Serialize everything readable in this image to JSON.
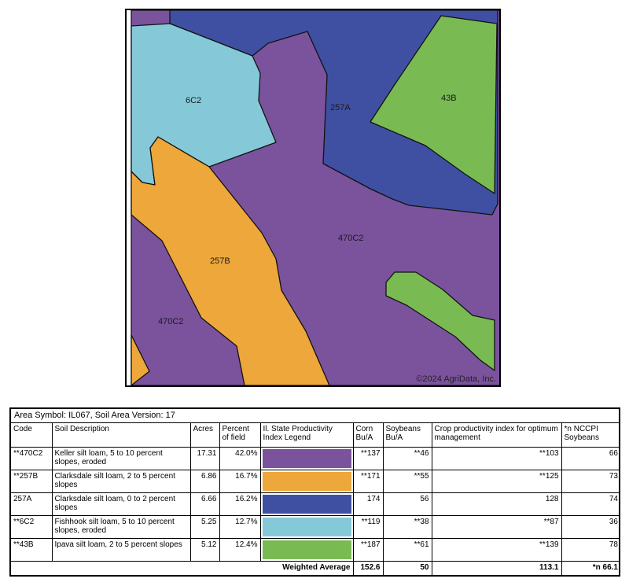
{
  "map": {
    "copyright": "©2024 AgriData, Inc.",
    "labels": [
      {
        "id": "6C2",
        "text": "6C2"
      },
      {
        "id": "257A",
        "text": "257A"
      },
      {
        "id": "43B",
        "text": "43B"
      },
      {
        "id": "470C2-main",
        "text": "470C2"
      },
      {
        "id": "257B",
        "text": "257B"
      },
      {
        "id": "470C2-lower",
        "text": "470C2"
      }
    ],
    "colors": {
      "470C2": "#7b539d",
      "257B": "#eda73b",
      "257A": "#3f50a2",
      "6C2": "#85c9d9",
      "43B": "#79bb52"
    }
  },
  "table": {
    "area_header": "Area Symbol: IL067, Soil Area Version: 17",
    "headers": {
      "code": "Code",
      "description": "Soil Description",
      "acres": "Acres",
      "percent": "Percent of field",
      "legend": "Il. State Productivity Index Legend",
      "corn": "Corn Bu/A",
      "soybeans": "Soybeans Bu/A",
      "cpi": "Crop productivity index for optimum management",
      "nccpi": "*n NCCPI Soybeans"
    },
    "rows": [
      {
        "code": "**470C2",
        "description": "Keller silt loam, 5 to 10 percent slopes, eroded",
        "acres": "17.31",
        "percent": "42.0%",
        "color": "#7b539d",
        "corn": "**137",
        "soybeans": "**46",
        "cpi": "**103",
        "nccpi": "66"
      },
      {
        "code": "**257B",
        "description": "Clarksdale silt loam, 2 to 5 percent slopes",
        "acres": "6.86",
        "percent": "16.7%",
        "color": "#eda73b",
        "corn": "**171",
        "soybeans": "**55",
        "cpi": "**125",
        "nccpi": "73"
      },
      {
        "code": "257A",
        "description": "Clarksdale silt loam, 0 to 2 percent slopes",
        "acres": "6.66",
        "percent": "16.2%",
        "color": "#3f50a2",
        "corn": "174",
        "soybeans": "56",
        "cpi": "128",
        "nccpi": "74"
      },
      {
        "code": "**6C2",
        "description": "Fishhook silt loam, 5 to 10 percent slopes, eroded",
        "acres": "5.25",
        "percent": "12.7%",
        "color": "#85c9d9",
        "corn": "**119",
        "soybeans": "**38",
        "cpi": "**87",
        "nccpi": "36"
      },
      {
        "code": "**43B",
        "description": "Ipava silt loam, 2 to 5 percent slopes",
        "acres": "5.12",
        "percent": "12.4%",
        "color": "#79bb52",
        "corn": "**187",
        "soybeans": "**61",
        "cpi": "**139",
        "nccpi": "78"
      }
    ],
    "weighted": {
      "label": "Weighted Average",
      "corn": "152.6",
      "soybeans": "50",
      "cpi": "113.1",
      "nccpi": "*n 66.1"
    }
  }
}
